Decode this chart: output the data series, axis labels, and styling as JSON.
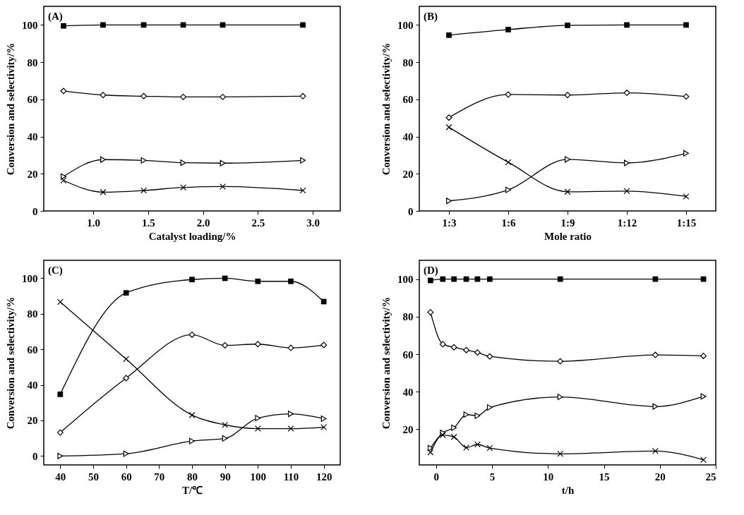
{
  "chart_data": [
    {
      "type": "line",
      "title": "(A)",
      "xlabel": "Catalyst loading/%",
      "ylabel": "Conversion and selectivity/%",
      "x": [
        0.73,
        1.09,
        1.46,
        1.82,
        2.18,
        2.91
      ],
      "xlim": [
        0.55,
        3.25
      ],
      "xticks": [
        {
          "value": 1,
          "label": "1.0"
        },
        1.5,
        {
          "value": 2,
          "label": "2.0"
        },
        2.5,
        {
          "value": 3,
          "label": "3.0"
        }
      ],
      "ylim": [
        0,
        110
      ],
      "yticks": [
        0,
        20,
        40,
        60,
        80,
        100
      ],
      "series": [
        {
          "color": "#000000",
          "marker": "square",
          "values": [
            99.5,
            100,
            100,
            100,
            100,
            100
          ]
        },
        {
          "color": "#000000",
          "marker": "diamond",
          "values": [
            64.5,
            62.3,
            61.7,
            61.3,
            61.3,
            61.7
          ]
        },
        {
          "color": "#000000",
          "marker": "triangle",
          "values": [
            18.5,
            27.6,
            27.2,
            25.9,
            25.7,
            27.2
          ]
        },
        {
          "color": "#000000",
          "marker": "cross",
          "values": [
            16.4,
            10.1,
            11,
            12.6,
            13.1,
            11
          ]
        }
      ]
    },
    {
      "type": "line",
      "title": "(B)",
      "xlabel": "Mole ratio",
      "ylabel": "Conversion and selectivity/%",
      "categories": [
        "1:3",
        "1:6",
        "1:9",
        "1:12",
        "1:15"
      ],
      "ylim": [
        0,
        110
      ],
      "yticks": [
        0,
        20,
        40,
        60,
        80,
        100
      ],
      "series": [
        {
          "color": "#000000",
          "marker": "square",
          "values": [
            94.5,
            97.5,
            99.8,
            100,
            100
          ]
        },
        {
          "color": "#000000",
          "marker": "diamond",
          "values": [
            50.2,
            62.6,
            62.3,
            63.5,
            61.5
          ]
        },
        {
          "color": "#000000",
          "marker": "triangle",
          "values": [
            5.4,
            11.3,
            27.7,
            25.8,
            31
          ]
        },
        {
          "color": "#000000",
          "marker": "cross",
          "values": [
            45,
            26.2,
            10.3,
            10.7,
            7.8
          ]
        }
      ]
    },
    {
      "type": "line",
      "title": "(C)",
      "xlabel": "T/℃",
      "ylabel": "Conversion and selectivity/%",
      "x": [
        40,
        60,
        80,
        90,
        100,
        110,
        120
      ],
      "xlim": [
        35,
        125
      ],
      "xticks": [
        40,
        50,
        60,
        70,
        80,
        90,
        100,
        110,
        120
      ],
      "ylim": [
        -5,
        110
      ],
      "yticks": [
        0,
        20,
        40,
        60,
        80,
        100
      ],
      "series": [
        {
          "color": "#000000",
          "marker": "square",
          "values": [
            34.7,
            91.7,
            99.2,
            99.9,
            98.2,
            98.2,
            86.8
          ]
        },
        {
          "color": "#000000",
          "marker": "diamond",
          "values": [
            13.2,
            43.8,
            68.2,
            62.2,
            62.9,
            60.8,
            62.4
          ]
        },
        {
          "color": "#000000",
          "marker": "triangle",
          "values": [
            0,
            1.3,
            8.4,
            9.9,
            21.3,
            23.7,
            21
          ]
        },
        {
          "color": "#000000",
          "marker": "cross",
          "values": [
            86.6,
            54.5,
            23,
            17.5,
            15.4,
            15.4,
            16.2
          ]
        }
      ]
    },
    {
      "type": "line",
      "title": "(D)",
      "xlabel": "t/h",
      "ylabel": "Conversion and selectivity/%",
      "x": [
        -0.5,
        0.6,
        1.6,
        2.7,
        3.7,
        4.8,
        11.1,
        19.6,
        23.9
      ],
      "xlim": [
        -1.5,
        25
      ],
      "xticks": [
        0,
        5,
        10,
        15,
        20,
        25
      ],
      "ylim": [
        1,
        110
      ],
      "yticks": [
        20,
        40,
        60,
        80,
        100
      ],
      "series": [
        {
          "color": "#000000",
          "marker": "square",
          "values": [
            99.3,
            100,
            100,
            100,
            100,
            100,
            100,
            100,
            100
          ]
        },
        {
          "color": "#000000",
          "marker": "diamond",
          "values": [
            82.3,
            65.3,
            63.7,
            62.2,
            60.9,
            58.8,
            56.2,
            59.6,
            59.1
          ]
        },
        {
          "color": "#000000",
          "marker": "triangle",
          "values": [
            10,
            18.1,
            20.8,
            27.8,
            27.2,
            31.6,
            37.2,
            32.1,
            37.5
          ]
        },
        {
          "color": "#000000",
          "marker": "cross",
          "values": [
            7.7,
            16.9,
            15.9,
            10.2,
            11.9,
            10,
            6.9,
            8.4,
            3.7
          ]
        }
      ]
    }
  ]
}
